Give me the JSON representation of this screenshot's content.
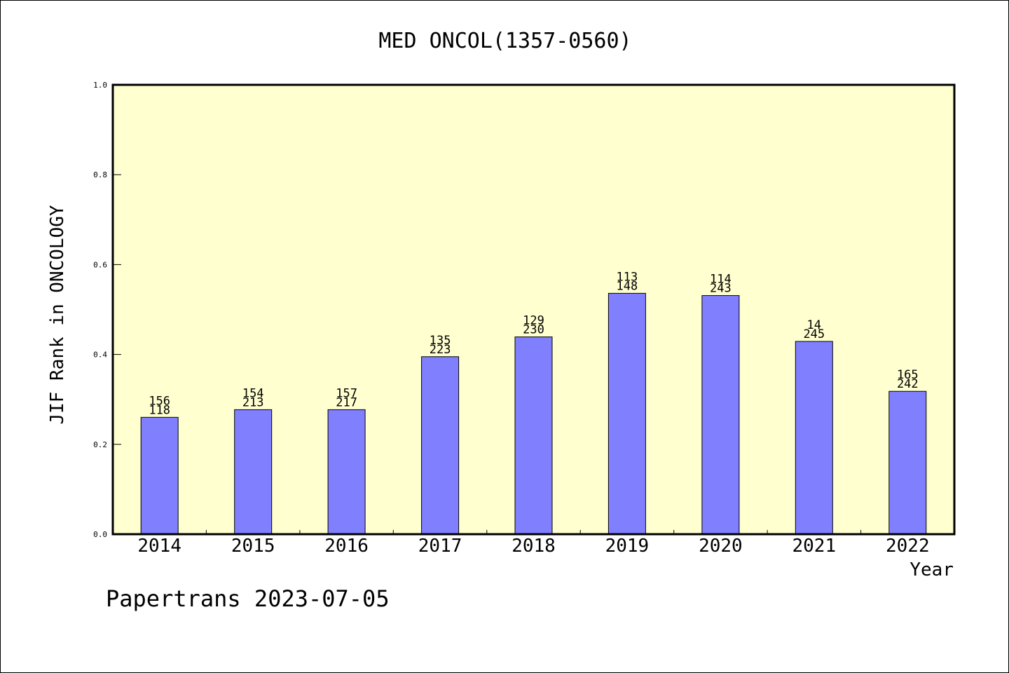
{
  "chart_data": {
    "type": "bar",
    "title": "MED ONCOL(1357-0560)",
    "xlabel": "Year",
    "ylabel": "JIF Rank in ONCOLOGY",
    "ylim": [
      0,
      1.0
    ],
    "yticks": [
      "0.0",
      "0.2",
      "0.4",
      "0.6",
      "0.8",
      "1.0"
    ],
    "categories": [
      "2014",
      "2015",
      "2016",
      "2017",
      "2018",
      "2019",
      "2020",
      "2021",
      "2022"
    ],
    "values": [
      0.26,
      0.277,
      0.277,
      0.395,
      0.439,
      0.536,
      0.531,
      0.429,
      0.318
    ],
    "rank_labels": [
      "156",
      "154",
      "157",
      "135",
      "129",
      "113",
      "114",
      "14",
      "165"
    ],
    "total_labels": [
      "118",
      "213",
      "217",
      "223",
      "230",
      "148",
      "243",
      "245",
      "242"
    ],
    "bar_color": "#8080ff",
    "plot_background": "#ffffd0",
    "grid": false
  },
  "footer": {
    "text": "Papertrans 2023-07-05"
  }
}
